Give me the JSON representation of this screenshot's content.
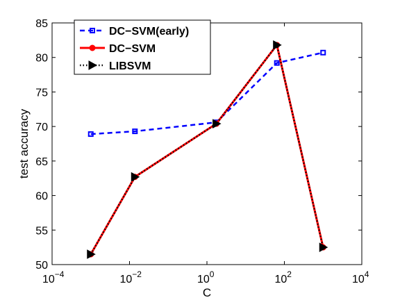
{
  "chart_data": {
    "type": "line",
    "xscale": "log",
    "xlim": [
      0.0001,
      10000
    ],
    "ylim": [
      50,
      85
    ],
    "xlabel": "C",
    "ylabel": "test accuracy",
    "x_ticks": [
      {
        "value": 0.0001,
        "base": "10",
        "exp": "−4"
      },
      {
        "value": 0.01,
        "base": "10",
        "exp": "−2"
      },
      {
        "value": 1,
        "base": "10",
        "exp": "0"
      },
      {
        "value": 100,
        "base": "10",
        "exp": "2"
      },
      {
        "value": 10000,
        "base": "10",
        "exp": "4"
      }
    ],
    "y_ticks": [
      50,
      55,
      60,
      65,
      70,
      75,
      80,
      85
    ],
    "legend_position": "top-left",
    "series": [
      {
        "name": "DC−SVM(early)",
        "color": "#0000ff",
        "line_style": "dashed",
        "marker": "square",
        "x": [
          0.001,
          0.0138,
          1.75,
          64,
          1000
        ],
        "y": [
          68.9,
          69.3,
          70.6,
          79.2,
          80.7
        ]
      },
      {
        "name": "DC−SVM",
        "color": "#ff0000",
        "line_style": "solid",
        "marker": "circle",
        "x": [
          0.001,
          0.0138,
          1.75,
          64,
          1000
        ],
        "y": [
          51.5,
          62.7,
          70.4,
          81.8,
          52.5
        ]
      },
      {
        "name": "LIBSVM",
        "color": "#000000",
        "line_style": "dotted",
        "marker": "triangle-right",
        "x": [
          0.001,
          0.0138,
          1.75,
          64,
          1000
        ],
        "y": [
          51.5,
          62.7,
          70.4,
          81.8,
          52.5
        ]
      }
    ]
  }
}
